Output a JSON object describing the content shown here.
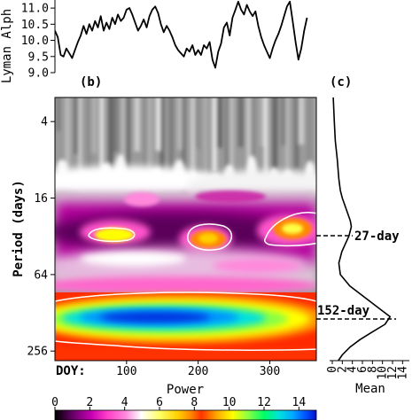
{
  "chart_data": [
    {
      "type": "line",
      "panel_label": "",
      "ylabel": "Lyman Alph",
      "yticks": [
        "9.0",
        "9.5",
        "10.0",
        "10.5",
        "11.0"
      ],
      "ylim": [
        9.0,
        11.25
      ],
      "xlim": [
        0,
        365
      ],
      "series": [
        {
          "x": [
            0,
            4,
            8,
            12,
            16,
            20,
            24,
            28,
            32,
            36,
            40,
            44,
            48,
            52,
            56,
            60,
            64,
            68,
            72,
            76,
            80,
            84,
            88,
            92,
            96,
            100,
            104,
            108,
            112,
            116,
            120,
            124,
            128,
            132,
            136,
            140,
            144,
            148,
            152,
            156,
            160,
            164,
            168,
            172,
            176,
            180,
            184,
            188,
            192,
            196,
            200,
            204,
            208,
            212,
            216,
            220,
            224,
            228,
            232,
            236,
            240,
            244,
            248,
            252,
            256,
            260,
            264,
            268,
            272,
            276,
            280,
            284,
            288,
            292,
            296,
            300,
            304,
            308,
            312,
            316,
            320,
            324,
            328,
            332,
            336,
            340,
            344,
            348,
            352
          ],
          "y": [
            10.3,
            10.1,
            9.55,
            9.5,
            9.75,
            9.6,
            9.45,
            9.7,
            9.95,
            10.15,
            10.45,
            10.2,
            10.5,
            10.3,
            10.6,
            10.4,
            10.75,
            10.3,
            10.55,
            10.35,
            10.7,
            10.5,
            10.8,
            10.6,
            10.7,
            10.95,
            11.0,
            10.8,
            10.55,
            10.3,
            10.45,
            10.65,
            10.4,
            10.75,
            10.95,
            11.05,
            10.85,
            10.5,
            10.25,
            10.45,
            10.3,
            10.1,
            9.85,
            9.7,
            9.6,
            9.5,
            9.75,
            9.65,
            9.85,
            9.55,
            9.7,
            9.55,
            9.85,
            9.75,
            9.95,
            9.4,
            9.15,
            9.65,
            9.9,
            10.4,
            10.55,
            10.15,
            10.7,
            10.95,
            11.2,
            10.95,
            10.8,
            11.1,
            10.9,
            10.75,
            10.9,
            10.45,
            10.1,
            9.85,
            9.65,
            9.45,
            9.75,
            10.0,
            10.2,
            10.45,
            10.75,
            11.05,
            11.2,
            10.6,
            9.95,
            9.4,
            9.75,
            10.3,
            10.7
          ]
        }
      ]
    },
    {
      "type": "heatmap",
      "panel_label": "(b)",
      "ylabel": "Period (days)",
      "yticks": [
        "4",
        "16",
        "64",
        "256"
      ],
      "xlabel_prefix": "DOY:",
      "xticks": [
        "100",
        "200",
        "300"
      ],
      "xlim": [
        0,
        365
      ],
      "ylim_log2": [
        1.37,
        8.25
      ],
      "annotations": [
        "27-day",
        "152-day"
      ]
    },
    {
      "type": "line",
      "panel_label": "(c)",
      "xlabel": "Mean",
      "xticks": [
        "0",
        "2",
        "4",
        "6",
        "8",
        "10",
        "12",
        "14"
      ],
      "xlim": [
        0,
        15
      ],
      "ylim_log2": [
        1.37,
        8.25
      ],
      "series": [
        {
          "log2_period": [
            1.37,
            2.0,
            2.5,
            3.0,
            3.5,
            3.8,
            4.0,
            4.3,
            4.6,
            4.75,
            5.0,
            5.2,
            5.4,
            5.7,
            6.0,
            6.3,
            6.6,
            6.9,
            7.1,
            7.3,
            7.5,
            7.7,
            7.9,
            8.1,
            8.25
          ],
          "power": [
            0.2,
            0.4,
            0.6,
            1.0,
            1.3,
            1.6,
            2.0,
            2.8,
            3.6,
            3.8,
            3.3,
            2.6,
            1.9,
            1.3,
            1.6,
            3.5,
            6.5,
            9.5,
            11.5,
            10.5,
            8.0,
            5.5,
            3.5,
            2.0,
            1.2
          ]
        }
      ]
    },
    {
      "type": "colorbar",
      "xlabel": "Power",
      "ticks": [
        "0",
        "2",
        "4",
        "6",
        "8",
        "10",
        "12",
        "14"
      ],
      "range": [
        0,
        15
      ],
      "colors": [
        "#000000",
        "#6a006a",
        "#c800b4",
        "#ff3ec8",
        "#ff88dc",
        "#ffffff",
        "#ffff66",
        "#ffd000",
        "#ff8800",
        "#ff3300",
        "#ffaa00",
        "#ffff00",
        "#88ff44",
        "#00ff66",
        "#00e0e0",
        "#00a8ff",
        "#0050ff",
        "#0010d0"
      ]
    }
  ]
}
